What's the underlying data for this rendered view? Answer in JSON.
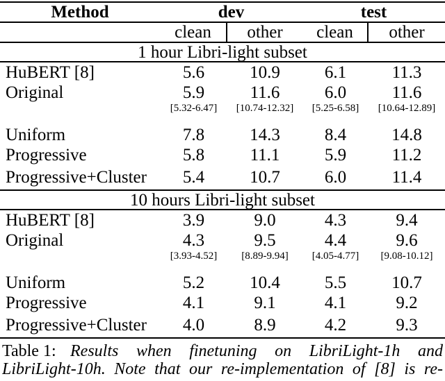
{
  "colors": {
    "text": "#000000",
    "rule": "#000000",
    "background": "#ffffff"
  },
  "table": {
    "col_headers": {
      "method": "Method",
      "dev": "dev",
      "test": "test",
      "sub": [
        "clean",
        "other",
        "clean",
        "other"
      ]
    },
    "sections": [
      {
        "title": "1 hour Libri-light subset",
        "rows": [
          {
            "method": "HuBERT [8]",
            "values": [
              "5.6",
              "10.9",
              "6.1",
              "11.3"
            ]
          },
          {
            "method": "Original",
            "values": [
              "5.9",
              "11.6",
              "6.0",
              "11.6"
            ],
            "ranges": [
              "[5.32-6.47]",
              "[10.74-12.32]",
              "[5.25-6.58]",
              "[10.64-12.89]"
            ]
          },
          {
            "method": "Uniform",
            "values": [
              "7.8",
              "14.3",
              "8.4",
              "14.8"
            ]
          },
          {
            "method": "Progressive",
            "values": [
              "5.8",
              "11.1",
              "5.9",
              "11.2"
            ]
          },
          {
            "method": "Progressive+Cluster",
            "values": [
              "5.4",
              "10.7",
              "6.0",
              "11.4"
            ]
          }
        ]
      },
      {
        "title": "10 hours Libri-light subset",
        "rows": [
          {
            "method": "HuBERT [8]",
            "values": [
              "3.9",
              "9.0",
              "4.3",
              "9.4"
            ]
          },
          {
            "method": "Original",
            "values": [
              "4.3",
              "9.5",
              "4.4",
              "9.6"
            ],
            "ranges": [
              "[3.93-4.52]",
              "[8.89-9.94]",
              "[4.05-4.77]",
              "[9.08-10.12]"
            ]
          },
          {
            "method": "Uniform",
            "values": [
              "5.2",
              "10.4",
              "5.5",
              "10.7"
            ]
          },
          {
            "method": "Progressive",
            "values": [
              "4.1",
              "9.1",
              "4.1",
              "9.2"
            ]
          },
          {
            "method": "Progressive+Cluster",
            "values": [
              "4.0",
              "8.9",
              "4.2",
              "9.3"
            ]
          }
        ]
      }
    ]
  },
  "caption": {
    "label": "Table 1:",
    "line1_rest": "Results when finetuning on LibriLight-1h and",
    "line2": "LibriLight-10h. Note that our re-implementation of [8] is re-"
  }
}
